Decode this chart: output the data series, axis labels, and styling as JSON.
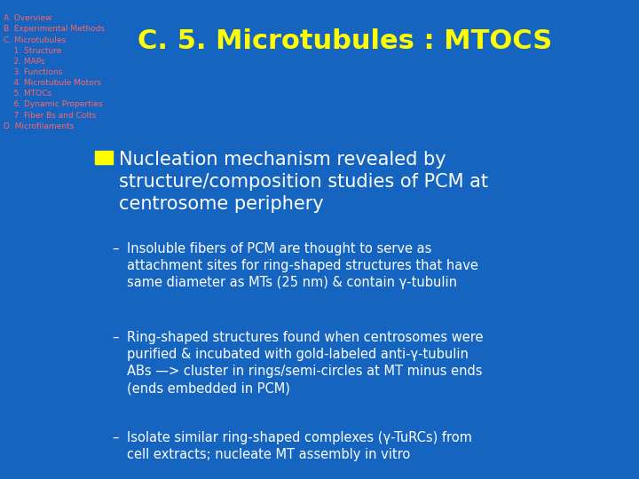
{
  "bg_color": "#1565c0",
  "title": "C. 5. Microtubules : MTOCS",
  "title_color": "#ffff00",
  "title_fontsize": 22,
  "nav_items": [
    "A. Overview",
    "B. Experimental Methods",
    "C. Microtubules",
    "    1. Structure",
    "    2. MAPs",
    "    3. Functions",
    "    4. Microtubule Motors",
    "    5. MTOCs",
    "    6. Dynamic Properties",
    "    7. Fiber Bs and Colts",
    "D. Microfilaments"
  ],
  "nav_color": "#ff6666",
  "nav_fontsize": 6.5,
  "bullet_color": "#ffff00",
  "bullet_text_lines": [
    "Nucleation mechanism revealed by",
    "structure/composition studies of PCM at",
    "centrosome periphery"
  ],
  "bullet_fontsize": 15,
  "sub_bullets": [
    "Insoluble fibers of PCM are thought to serve as\nattachment sites for ring-shaped structures that have\nsame diameter as MTs (25 nm) & contain γ-tubulin",
    "Ring-shaped structures found when centrosomes were\npurified & incubated with gold-labeled anti-γ-tubulin\nABs —> cluster in rings/semi-circles at MT minus ends\n(ends embedded in PCM)",
    "Isolate similar ring-shaped complexes (γ-TuRCs) from\ncell extracts; nucleate MT assembly in vitro"
  ],
  "sub_bullet_fontsize": 10.5,
  "sub_bullet_color": "#ffffff",
  "text_color": "#ffffff"
}
